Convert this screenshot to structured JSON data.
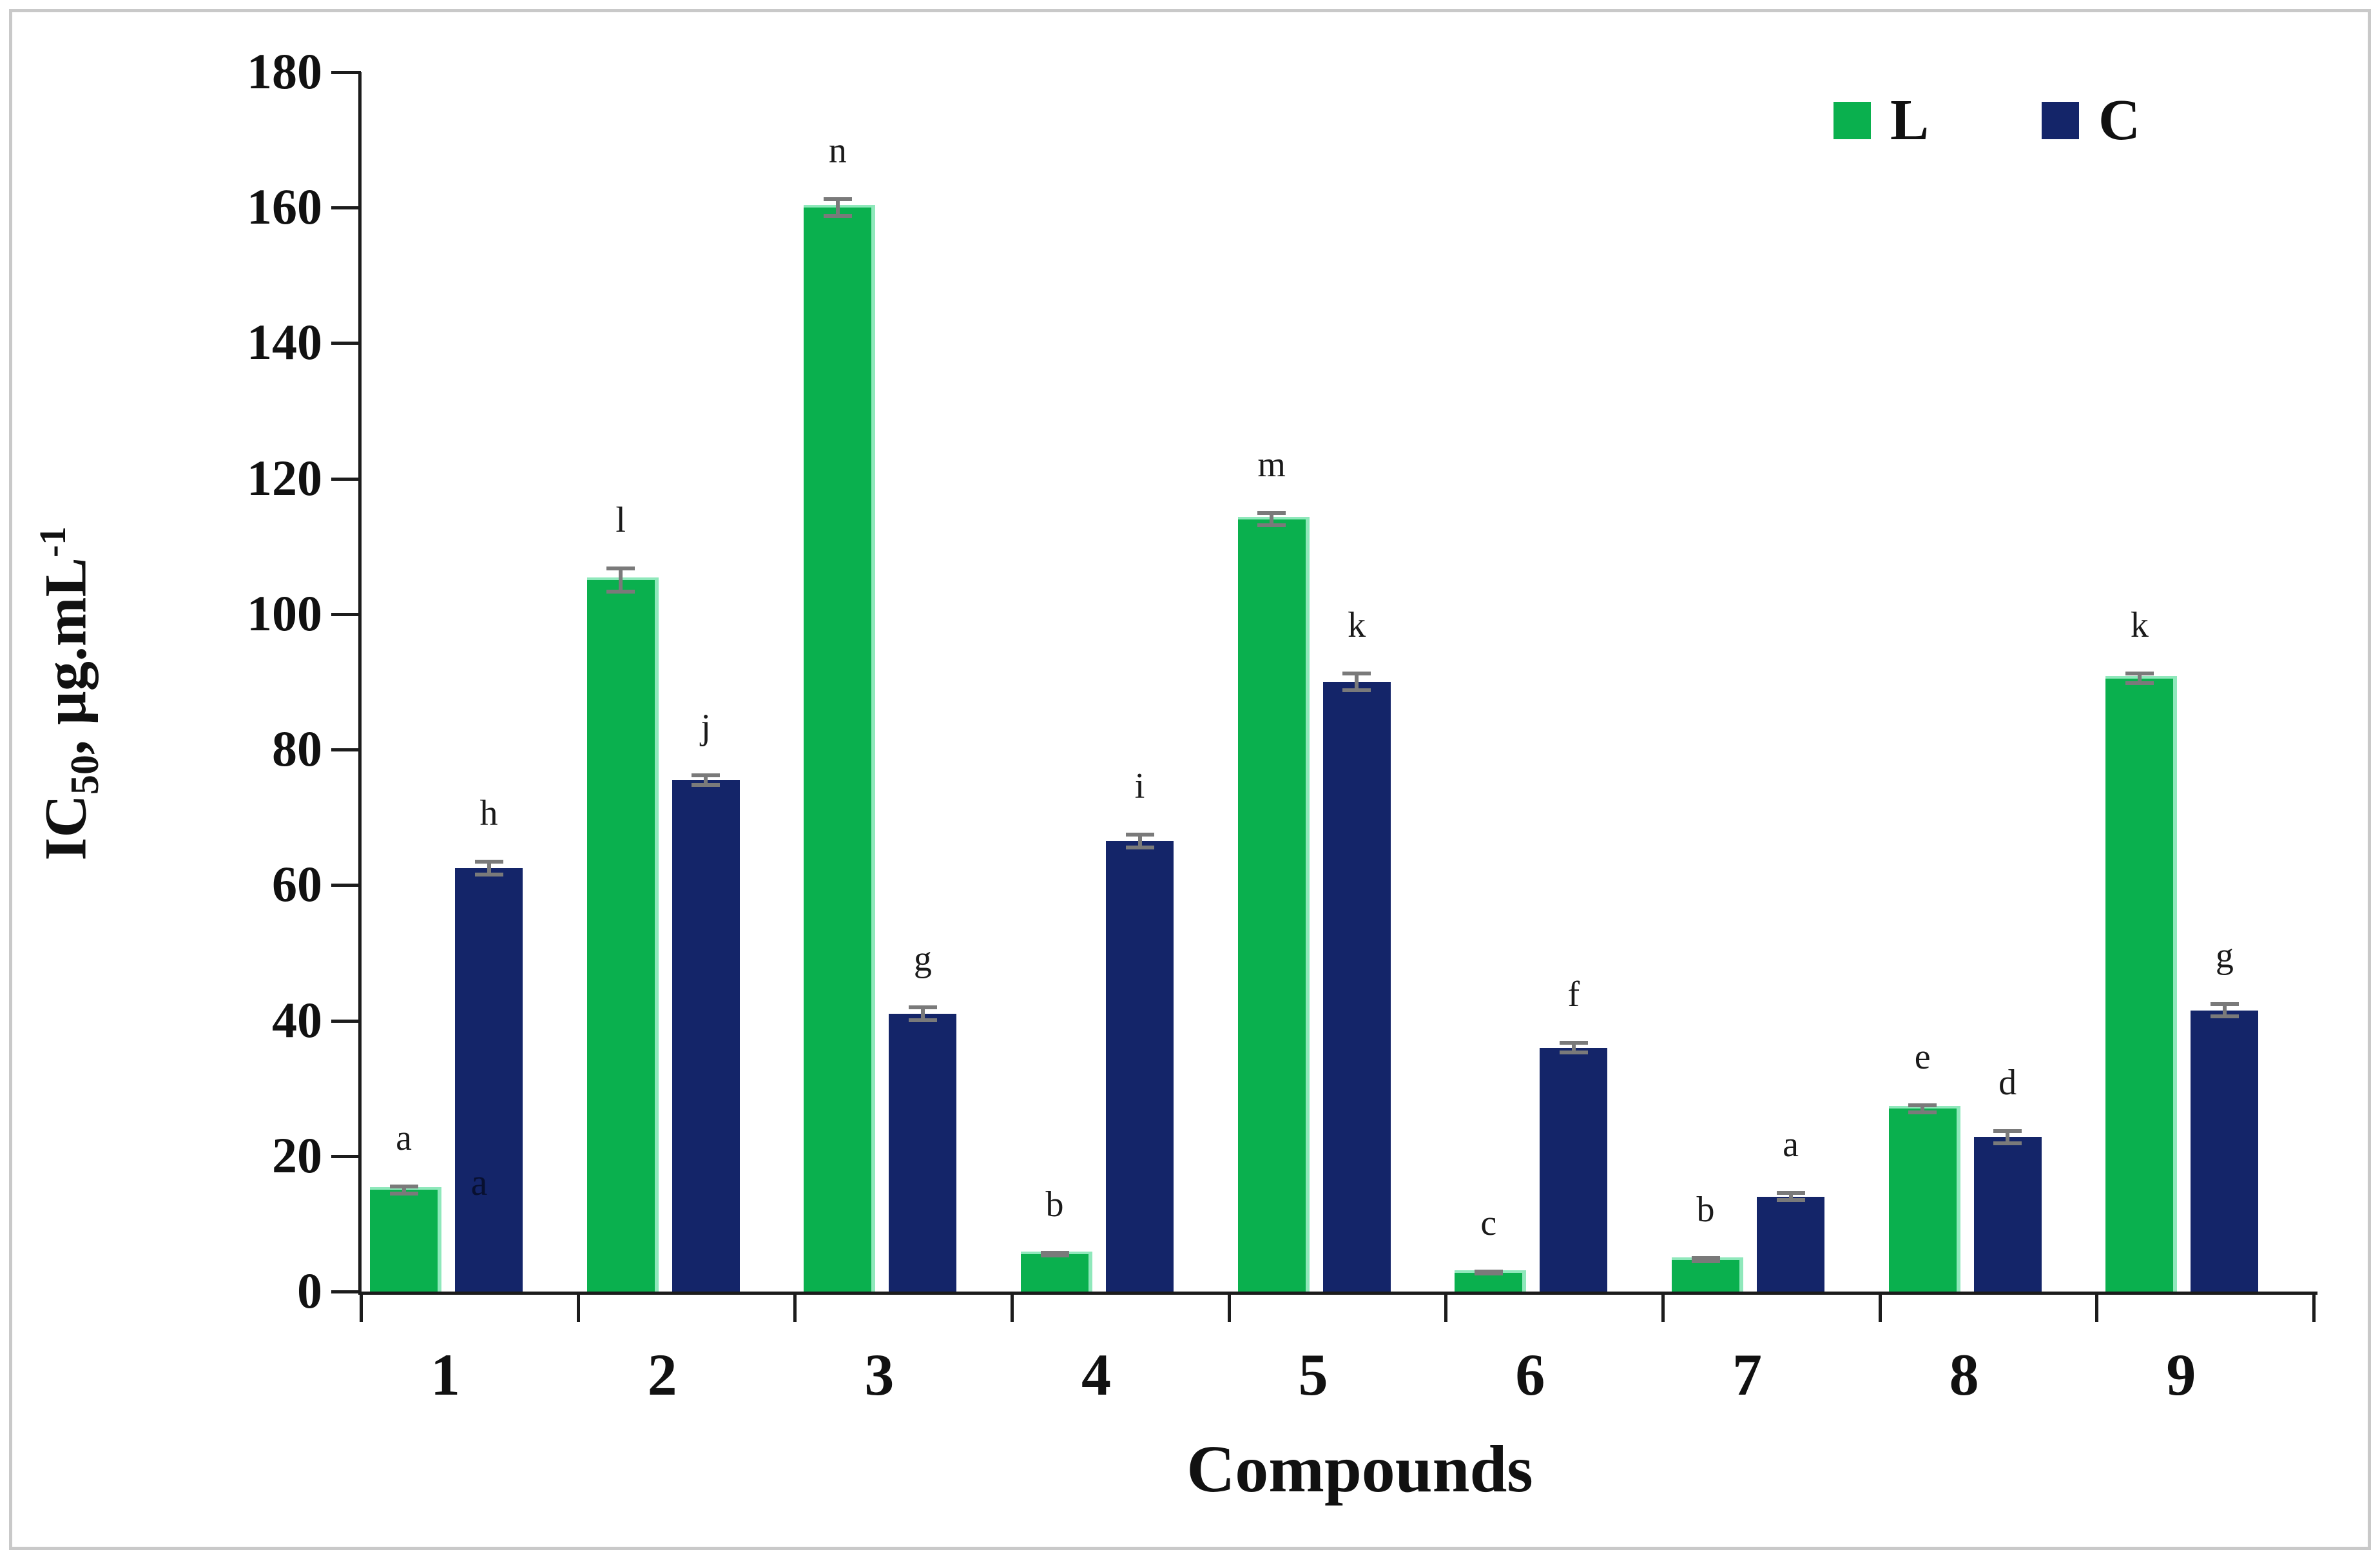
{
  "chart_data": {
    "type": "bar",
    "title": "",
    "xlabel": "Compounds",
    "ylabel_text": "IC50, µg.mL-1",
    "ylabel_parts": {
      "main": "IC",
      "sub": "50",
      "unit": ", µg.mL",
      "sup": "-1"
    },
    "ylim": [
      0,
      180
    ],
    "ytick_step": 20,
    "grid": false,
    "legend_position": "top-right-inside",
    "categories": [
      "1",
      "2",
      "3",
      "4",
      "5",
      "6",
      "7",
      "8",
      "9"
    ],
    "series": [
      {
        "name": "L",
        "color": "#0ab04e",
        "values": [
          15,
          105,
          160,
          5.5,
          114,
          2.8,
          4.7,
          27,
          90.5
        ],
        "errors": [
          0.8,
          2,
          1.5,
          0.5,
          1.2,
          0.4,
          0.5,
          0.8,
          1
        ],
        "letters": [
          "a",
          "l",
          "n",
          "b",
          "m",
          "c",
          "b",
          "e",
          "k"
        ]
      },
      {
        "name": "C",
        "color": "#142569",
        "values": [
          62.5,
          75.5,
          41,
          66.5,
          90,
          36,
          14,
          22.8,
          41.5
        ],
        "errors": [
          1.2,
          1,
          1.2,
          1.2,
          1.5,
          1,
          0.8,
          1.2,
          1.2
        ],
        "letters": [
          "h",
          "j",
          "g",
          "i",
          "k",
          "f",
          "a",
          "d",
          "g"
        ]
      }
    ],
    "extra_annotations": [
      {
        "text": "a",
        "series": "C",
        "category": "1",
        "at_value": 16
      }
    ],
    "colors": {
      "bar_green": "#0ab04e",
      "bar_green_edge": "#8fe8bb",
      "bar_navy": "#142569",
      "error_bar": "#7a7a7a",
      "axis": "#1c1c1c",
      "frame_border": "#c9c9c9",
      "text": "#111111"
    }
  }
}
